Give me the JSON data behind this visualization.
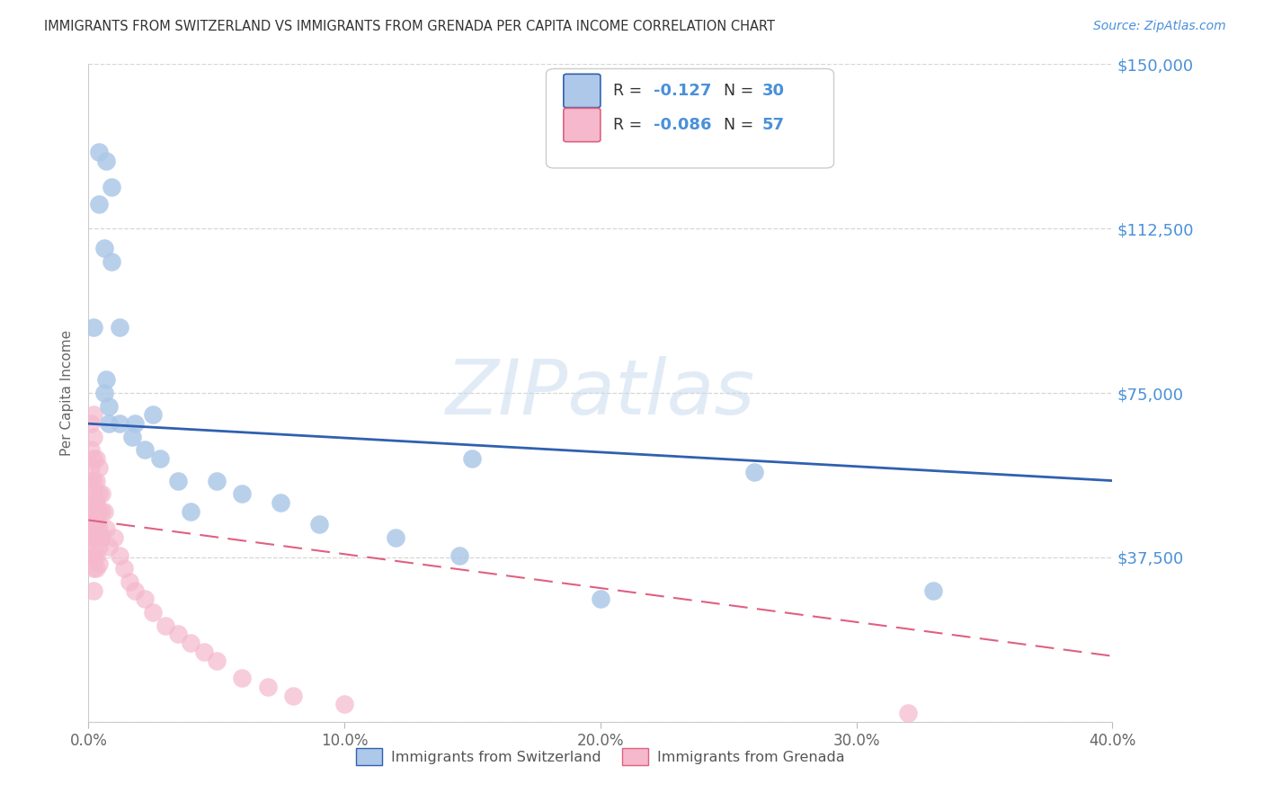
{
  "title": "IMMIGRANTS FROM SWITZERLAND VS IMMIGRANTS FROM GRENADA PER CAPITA INCOME CORRELATION CHART",
  "source": "Source: ZipAtlas.com",
  "ylabel": "Per Capita Income",
  "xlim": [
    0.0,
    0.4
  ],
  "ylim": [
    0,
    150000
  ],
  "yticks": [
    0,
    37500,
    75000,
    112500,
    150000
  ],
  "ytick_labels": [
    "",
    "$37,500",
    "$75,000",
    "$112,500",
    "$150,000"
  ],
  "xticks": [
    0.0,
    0.1,
    0.2,
    0.3,
    0.4
  ],
  "xtick_labels": [
    "0.0%",
    "10.0%",
    "20.0%",
    "30.0%",
    "40.0%"
  ],
  "switzerland_color": "#adc8e8",
  "grenada_color": "#f5b8cc",
  "trend_switzerland_color": "#3060b0",
  "trend_grenada_color": "#e06080",
  "legend_sw_text": "R =  -0.127   N = 30",
  "legend_gr_text": "R =  -0.086   N = 57",
  "legend_label_switzerland": "Immigrants from Switzerland",
  "legend_label_grenada": "Immigrants from Grenada",
  "watermark": "ZIPatlas",
  "title_color": "#333333",
  "axis_label_color": "#666666",
  "ytick_color": "#4a90d9",
  "xtick_color": "#666666",
  "grid_color": "#cccccc",
  "background_color": "#ffffff",
  "sw_trend_y0": 68000,
  "sw_trend_y1": 55000,
  "gr_trend_y0": 46000,
  "gr_trend_y1": 15000,
  "switzerland_x": [
    0.004,
    0.007,
    0.009,
    0.004,
    0.006,
    0.009,
    0.002,
    0.007,
    0.006,
    0.008,
    0.012,
    0.008,
    0.012,
    0.018,
    0.017,
    0.022,
    0.025,
    0.028,
    0.035,
    0.04,
    0.05,
    0.06,
    0.075,
    0.09,
    0.12,
    0.145,
    0.26,
    0.33,
    0.15,
    0.2
  ],
  "switzerland_y": [
    130000,
    128000,
    122000,
    118000,
    108000,
    105000,
    90000,
    78000,
    75000,
    72000,
    90000,
    68000,
    68000,
    68000,
    65000,
    62000,
    70000,
    60000,
    55000,
    48000,
    55000,
    52000,
    50000,
    45000,
    42000,
    38000,
    57000,
    30000,
    60000,
    28000
  ],
  "grenada_x": [
    0.001,
    0.001,
    0.001,
    0.001,
    0.001,
    0.001,
    0.001,
    0.001,
    0.001,
    0.002,
    0.002,
    0.002,
    0.002,
    0.002,
    0.002,
    0.002,
    0.002,
    0.002,
    0.002,
    0.002,
    0.003,
    0.003,
    0.003,
    0.003,
    0.003,
    0.003,
    0.003,
    0.003,
    0.004,
    0.004,
    0.004,
    0.004,
    0.004,
    0.004,
    0.005,
    0.005,
    0.005,
    0.006,
    0.007,
    0.008,
    0.01,
    0.012,
    0.014,
    0.016,
    0.018,
    0.022,
    0.025,
    0.03,
    0.035,
    0.04,
    0.045,
    0.05,
    0.06,
    0.07,
    0.08,
    0.1,
    0.32
  ],
  "grenada_y": [
    68000,
    62000,
    58000,
    55000,
    52000,
    48000,
    45000,
    42000,
    38000,
    70000,
    65000,
    60000,
    55000,
    52000,
    48000,
    45000,
    42000,
    38000,
    35000,
    30000,
    60000,
    55000,
    50000,
    48000,
    45000,
    42000,
    38000,
    35000,
    58000,
    52000,
    48000,
    44000,
    40000,
    36000,
    52000,
    48000,
    42000,
    48000,
    44000,
    40000,
    42000,
    38000,
    35000,
    32000,
    30000,
    28000,
    25000,
    22000,
    20000,
    18000,
    16000,
    14000,
    10000,
    8000,
    6000,
    4000,
    2000
  ]
}
